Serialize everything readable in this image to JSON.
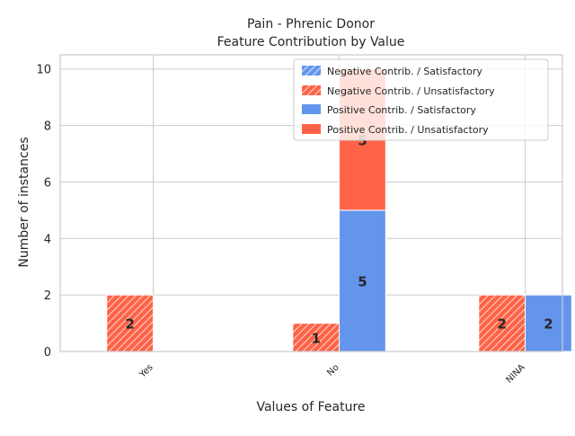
{
  "chart_data": {
    "type": "bar",
    "stacked": true,
    "title": "Pain - Phrenic Donor",
    "subtitle": "Feature Contribution by Value",
    "xlabel": "Values of Feature",
    "ylabel": "Number of instances",
    "categories": [
      "Yes",
      "No",
      "NINA"
    ],
    "ylim": [
      0,
      10.5
    ],
    "yticks": [
      0,
      2,
      4,
      6,
      8,
      10
    ],
    "grid": true,
    "legend_position": "top-right",
    "colors": {
      "satisfactory": "#6495ED",
      "unsatisfactory": "#FF6347"
    },
    "groups": [
      {
        "name": "Negative Contrib.",
        "hatched": true,
        "series": [
          {
            "name": "Negative Contrib. / Satisfactory",
            "outcome": "satisfactory",
            "values": [
              0,
              0,
              0
            ]
          },
          {
            "name": "Negative Contrib. / Unsatisfactory",
            "outcome": "unsatisfactory",
            "values": [
              2,
              1,
              2
            ]
          }
        ]
      },
      {
        "name": "Positive Contrib.",
        "hatched": false,
        "series": [
          {
            "name": "Positive Contrib. / Satisfactory",
            "outcome": "satisfactory",
            "values": [
              0,
              5,
              2
            ]
          },
          {
            "name": "Positive Contrib. / Unsatisfactory",
            "outcome": "unsatisfactory",
            "values": [
              0,
              5,
              0
            ]
          }
        ]
      }
    ]
  }
}
